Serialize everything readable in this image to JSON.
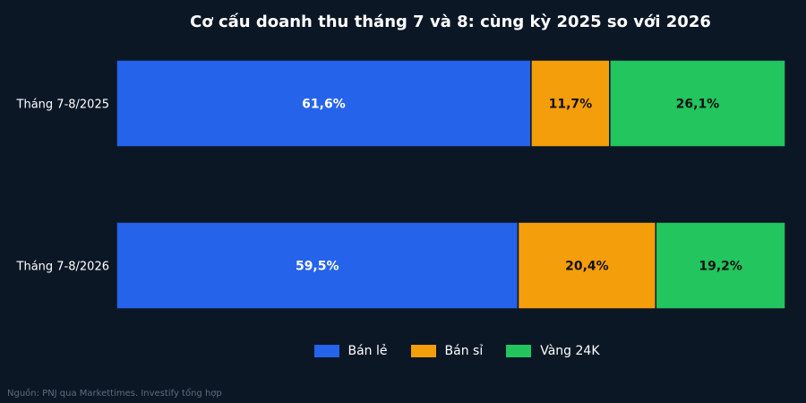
{
  "chart_data": {
    "type": "bar",
    "orientation": "horizontal",
    "stacked": true,
    "title": "Cơ cấu doanh thu tháng 7 và 8: cùng kỳ 2025 so với 2026",
    "categories": [
      "Tháng 7-8/2025",
      "Tháng 7-8/2026"
    ],
    "series": [
      {
        "name": "Bán lẻ",
        "values": [
          61.6,
          59.5
        ],
        "labels": [
          "61,6%",
          "59,5%"
        ],
        "color": "#2563eb",
        "label_color": "#ffffff"
      },
      {
        "name": "Bán sỉ",
        "values": [
          11.7,
          20.4
        ],
        "labels": [
          "11,7%",
          "20,4%"
        ],
        "color": "#f59e0b",
        "label_color": "#111111"
      },
      {
        "name": "Vàng 24K",
        "values": [
          26.1,
          19.2
        ],
        "labels": [
          "26,1%",
          "19,2%"
        ],
        "color": "#22c55e",
        "label_color": "#111111"
      }
    ],
    "legend_position": "bottom",
    "grid": false
  },
  "source": "Nguồn: PNJ qua Markettimes. Investify tổng hợp"
}
